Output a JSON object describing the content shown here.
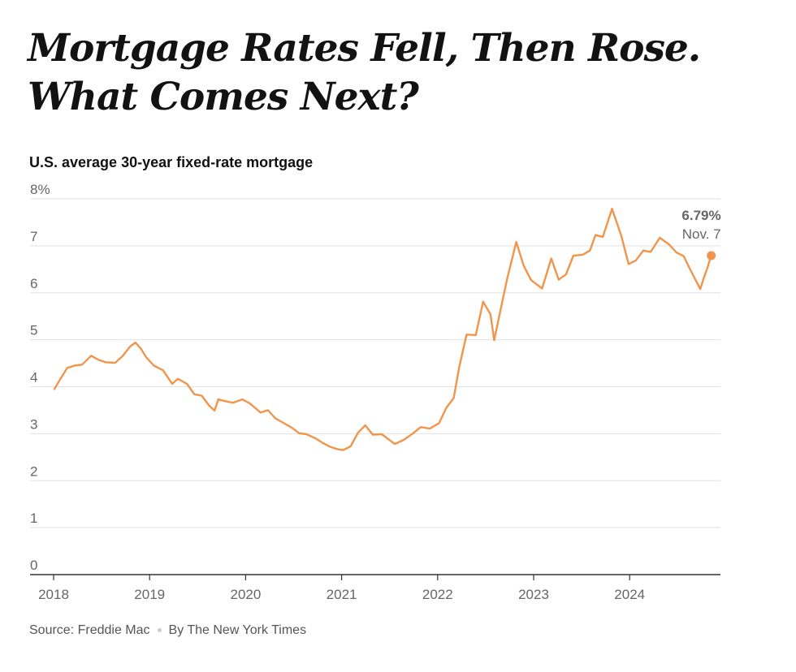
{
  "headline": "Mortgage Rates Fell, Then Rose. What Comes Next?",
  "source": "Source: Freddie Mac",
  "byline": "By The New York Times",
  "colors": {
    "line": "#f0954b",
    "grid": "#e2e2e2",
    "axis": "#333333",
    "text": "#666666"
  },
  "chart_data": {
    "type": "line",
    "title": "U.S. average 30-year fixed-rate mortgage",
    "ylim": [
      0,
      8
    ],
    "yticks": [
      0,
      1,
      2,
      3,
      4,
      5,
      6,
      7,
      8
    ],
    "ytick_labels": [
      "0",
      "1",
      "2",
      "3",
      "4",
      "5",
      "6",
      "7",
      "8%"
    ],
    "xticks": [
      2018,
      2019,
      2020,
      2021,
      2022,
      2023,
      2024
    ],
    "xtick_labels": [
      "2018",
      "2019",
      "2020",
      "2021",
      "2022",
      "2023",
      "2024"
    ],
    "grid": "horizontal",
    "annotation": {
      "value": "6.79%",
      "date": "Nov. 7"
    },
    "series": [
      {
        "values": [
          [
            "2018-01-04",
            3.95
          ],
          [
            "2018-01-25",
            4.15
          ],
          [
            "2018-02-22",
            4.4
          ],
          [
            "2018-03-22",
            4.45
          ],
          [
            "2018-04-19",
            4.47
          ],
          [
            "2018-05-24",
            4.66
          ],
          [
            "2018-06-21",
            4.57
          ],
          [
            "2018-07-19",
            4.52
          ],
          [
            "2018-08-23",
            4.51
          ],
          [
            "2018-09-20",
            4.65
          ],
          [
            "2018-10-18",
            4.85
          ],
          [
            "2018-11-08",
            4.94
          ],
          [
            "2018-11-29",
            4.81
          ],
          [
            "2018-12-20",
            4.62
          ],
          [
            "2019-01-17",
            4.45
          ],
          [
            "2019-02-21",
            4.35
          ],
          [
            "2019-03-28",
            4.06
          ],
          [
            "2019-04-18",
            4.17
          ],
          [
            "2019-05-23",
            4.06
          ],
          [
            "2019-06-20",
            3.84
          ],
          [
            "2019-07-18",
            3.81
          ],
          [
            "2019-08-15",
            3.6
          ],
          [
            "2019-09-05",
            3.49
          ],
          [
            "2019-09-19",
            3.73
          ],
          [
            "2019-10-17",
            3.69
          ],
          [
            "2019-11-14",
            3.66
          ],
          [
            "2019-12-19",
            3.73
          ],
          [
            "2020-01-16",
            3.65
          ],
          [
            "2020-02-27",
            3.45
          ],
          [
            "2020-03-26",
            3.5
          ],
          [
            "2020-04-23",
            3.33
          ],
          [
            "2020-05-21",
            3.24
          ],
          [
            "2020-06-25",
            3.13
          ],
          [
            "2020-07-23",
            3.01
          ],
          [
            "2020-08-20",
            2.99
          ],
          [
            "2020-09-24",
            2.9
          ],
          [
            "2020-10-22",
            2.8
          ],
          [
            "2020-11-19",
            2.72
          ],
          [
            "2020-12-17",
            2.67
          ],
          [
            "2021-01-07",
            2.65
          ],
          [
            "2021-02-04",
            2.73
          ],
          [
            "2021-03-04",
            3.02
          ],
          [
            "2021-04-01",
            3.18
          ],
          [
            "2021-04-29",
            2.98
          ],
          [
            "2021-06-03",
            2.99
          ],
          [
            "2021-07-22",
            2.78
          ],
          [
            "2021-08-26",
            2.87
          ],
          [
            "2021-09-30",
            3.01
          ],
          [
            "2021-10-28",
            3.14
          ],
          [
            "2021-12-02",
            3.11
          ],
          [
            "2022-01-06",
            3.22
          ],
          [
            "2022-02-03",
            3.55
          ],
          [
            "2022-03-03",
            3.76
          ],
          [
            "2022-03-24",
            4.42
          ],
          [
            "2022-04-21",
            5.11
          ],
          [
            "2022-05-26",
            5.1
          ],
          [
            "2022-06-23",
            5.81
          ],
          [
            "2022-07-21",
            5.54
          ],
          [
            "2022-08-04",
            4.99
          ],
          [
            "2022-08-25",
            5.55
          ],
          [
            "2022-09-22",
            6.29
          ],
          [
            "2022-10-27",
            7.08
          ],
          [
            "2022-11-24",
            6.58
          ],
          [
            "2022-12-22",
            6.27
          ],
          [
            "2023-02-02",
            6.09
          ],
          [
            "2023-03-09",
            6.73
          ],
          [
            "2023-04-06",
            6.28
          ],
          [
            "2023-05-04",
            6.39
          ],
          [
            "2023-06-01",
            6.79
          ],
          [
            "2023-07-06",
            6.81
          ],
          [
            "2023-08-03",
            6.9
          ],
          [
            "2023-08-24",
            7.23
          ],
          [
            "2023-09-21",
            7.19
          ],
          [
            "2023-10-26",
            7.79
          ],
          [
            "2023-11-30",
            7.22
          ],
          [
            "2023-12-28",
            6.61
          ],
          [
            "2024-01-25",
            6.69
          ],
          [
            "2024-02-22",
            6.9
          ],
          [
            "2024-03-21",
            6.87
          ],
          [
            "2024-04-25",
            7.17
          ],
          [
            "2024-05-30",
            7.03
          ],
          [
            "2024-06-27",
            6.86
          ],
          [
            "2024-07-25",
            6.78
          ],
          [
            "2024-08-22",
            6.46
          ],
          [
            "2024-09-26",
            6.08
          ],
          [
            "2024-10-10",
            6.32
          ],
          [
            "2024-10-24",
            6.54
          ],
          [
            "2024-11-07",
            6.79
          ]
        ]
      }
    ]
  }
}
